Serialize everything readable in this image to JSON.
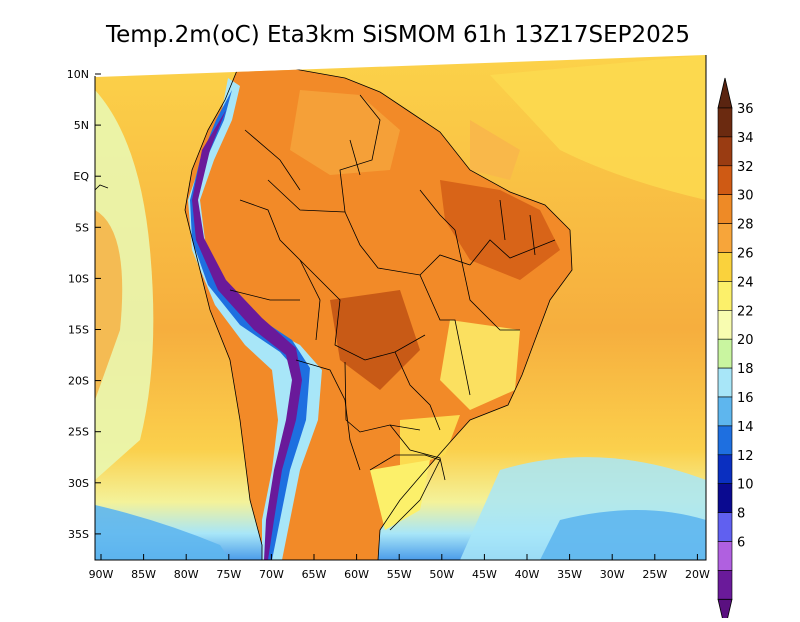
{
  "title": "Temp.2m(oC) Eta3km SiSMOM 61h 13Z17SEP2025",
  "map": {
    "y_ticks": [
      "10N",
      "5N",
      "EQ",
      "5S",
      "10S",
      "15S",
      "20S",
      "25S",
      "30S",
      "35S"
    ],
    "x_ticks": [
      "90W",
      "85W",
      "80W",
      "75W",
      "70W",
      "65W",
      "60W",
      "55W",
      "50W",
      "45W",
      "40W",
      "35W",
      "30W",
      "25W",
      "20W"
    ]
  },
  "colorbar": {
    "labels": [
      "36",
      "34",
      "32",
      "30",
      "28",
      "26",
      "24",
      "22",
      "20",
      "18",
      "16",
      "14",
      "12",
      "10",
      "8",
      "6"
    ],
    "colors_top_down": [
      "#6b2a10",
      "#9a3c12",
      "#cf5a14",
      "#ee8a26",
      "#f7a53a",
      "#fad23c",
      "#fcf06a",
      "#f8fcb0",
      "#c9f5a0",
      "#a8e6f8",
      "#5eb6ee",
      "#1e6fe0",
      "#0a2fc0",
      "#0a0a90",
      "#6060f0",
      "#b060e0",
      "#6a1a9a"
    ],
    "cap_top_color": "#5a2410",
    "cap_bottom_color": "#5a1080"
  }
}
